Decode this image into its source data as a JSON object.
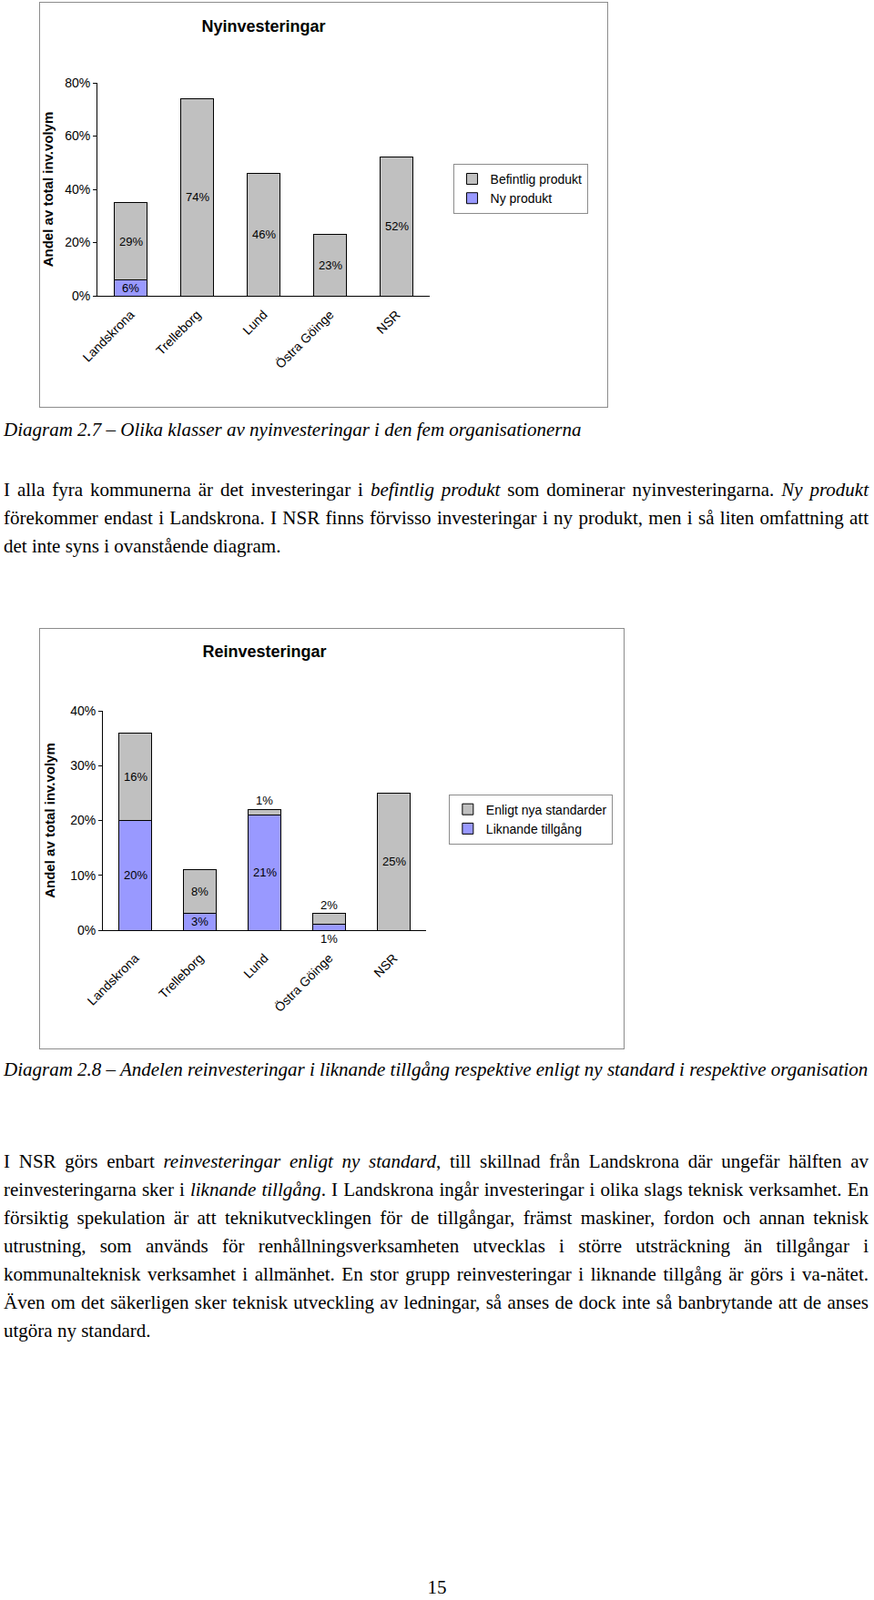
{
  "chart_data": [
    {
      "type": "bar",
      "title": "Nyinvesteringar",
      "y_label": "Andel av total inv.volym",
      "categories": [
        "Landskrona",
        "Trelleborg",
        "Lund",
        "Östra Göinge",
        "NSR"
      ],
      "stacked": true,
      "data_labels": true,
      "grid": false,
      "legend": "right",
      "ylim": [
        0,
        80
      ],
      "yticks": [
        {
          "value": 0,
          "label": "0%"
        },
        {
          "value": 20,
          "label": "20%"
        },
        {
          "value": 40,
          "label": "40%"
        },
        {
          "value": 60,
          "label": "60%"
        },
        {
          "value": 80,
          "label": "80%"
        }
      ],
      "series": [
        {
          "name": "Ny produkt",
          "color": "#9999ff",
          "values": [
            6,
            null,
            null,
            null,
            null
          ],
          "value_labels": [
            "6%",
            null,
            null,
            null,
            null
          ]
        },
        {
          "name": "Befintlig produkt",
          "color": "#c0c0c0",
          "values": [
            29,
            74,
            46,
            23,
            52
          ],
          "value_labels": [
            "29%",
            "74%",
            "46%",
            "23%",
            "52%"
          ]
        }
      ]
    },
    {
      "type": "bar",
      "title": "Reinvesteringar",
      "y_label": "Andel av total inv.volym",
      "categories": [
        "Landskrona",
        "Trelleborg",
        "Lund",
        "Östra Göinge",
        "NSR"
      ],
      "stacked": true,
      "data_labels": true,
      "grid": false,
      "legend": "right",
      "ylim": [
        0,
        40
      ],
      "yticks": [
        {
          "value": 0,
          "label": "0%"
        },
        {
          "value": 10,
          "label": "10%"
        },
        {
          "value": 20,
          "label": "20%"
        },
        {
          "value": 30,
          "label": "30%"
        },
        {
          "value": 40,
          "label": "40%"
        }
      ],
      "series": [
        {
          "name": "Liknande tillgång",
          "color": "#9999ff",
          "values": [
            20,
            3,
            21,
            1,
            null
          ],
          "value_labels": [
            "20%",
            "3%",
            "21%",
            "1%",
            null
          ]
        },
        {
          "name": "Enligt nya standarder",
          "color": "#c0c0c0",
          "values": [
            16,
            8,
            1,
            2,
            25
          ],
          "value_labels": [
            "16%",
            "8%",
            "1%",
            "2%",
            "25%"
          ]
        }
      ]
    }
  ],
  "document": {
    "figures": [
      {
        "caption": "Diagram 2.7 – Olika klasser av nyinvesteringar i den fem organisationerna",
        "paragraph": [
          {
            "text": "I alla fyra kommunerna är det investeringar i ",
            "italic": false
          },
          {
            "text": "befintlig produkt",
            "italic": true
          },
          {
            "text": " som dominerar nyinvesteringarna. ",
            "italic": false
          },
          {
            "text": "Ny produkt",
            "italic": true
          },
          {
            "text": " förekommer endast i Landskrona. I NSR finns förvisso investeringar i ny produkt, men i så liten omfattning att det inte syns i ovanstående diagram.",
            "italic": false
          }
        ]
      },
      {
        "caption": "Diagram 2.8 – Andelen reinvesteringar i liknande tillgång respektive enligt ny standard i respektive organisation",
        "paragraph": [
          {
            "text": "I NSR görs enbart ",
            "italic": false
          },
          {
            "text": "reinvesteringar enligt ny standard",
            "italic": true
          },
          {
            "text": ", till skillnad från Landskrona där ungefär hälften av reinvesteringarna sker i ",
            "italic": false
          },
          {
            "text": "liknande tillgång",
            "italic": true
          },
          {
            "text": ". I Landskrona ingår investeringar i olika slags teknisk verksamhet. En försiktig spekulation är att teknikutvecklingen för de tillgångar, främst maskiner, fordon och annan teknisk utrustning, som används för renhållningsverksamheten utvecklas i större utsträckning än tillgångar i kommunalteknisk verksamhet i allmänhet. En stor grupp reinvesteringar i liknande tillgång är görs i va-nätet. Även om det säkerligen sker teknisk utveckling av ledningar, så anses de dock inte så banbrytande att de anses utgöra ny standard.",
            "italic": false
          }
        ]
      }
    ],
    "page_number": 15
  }
}
